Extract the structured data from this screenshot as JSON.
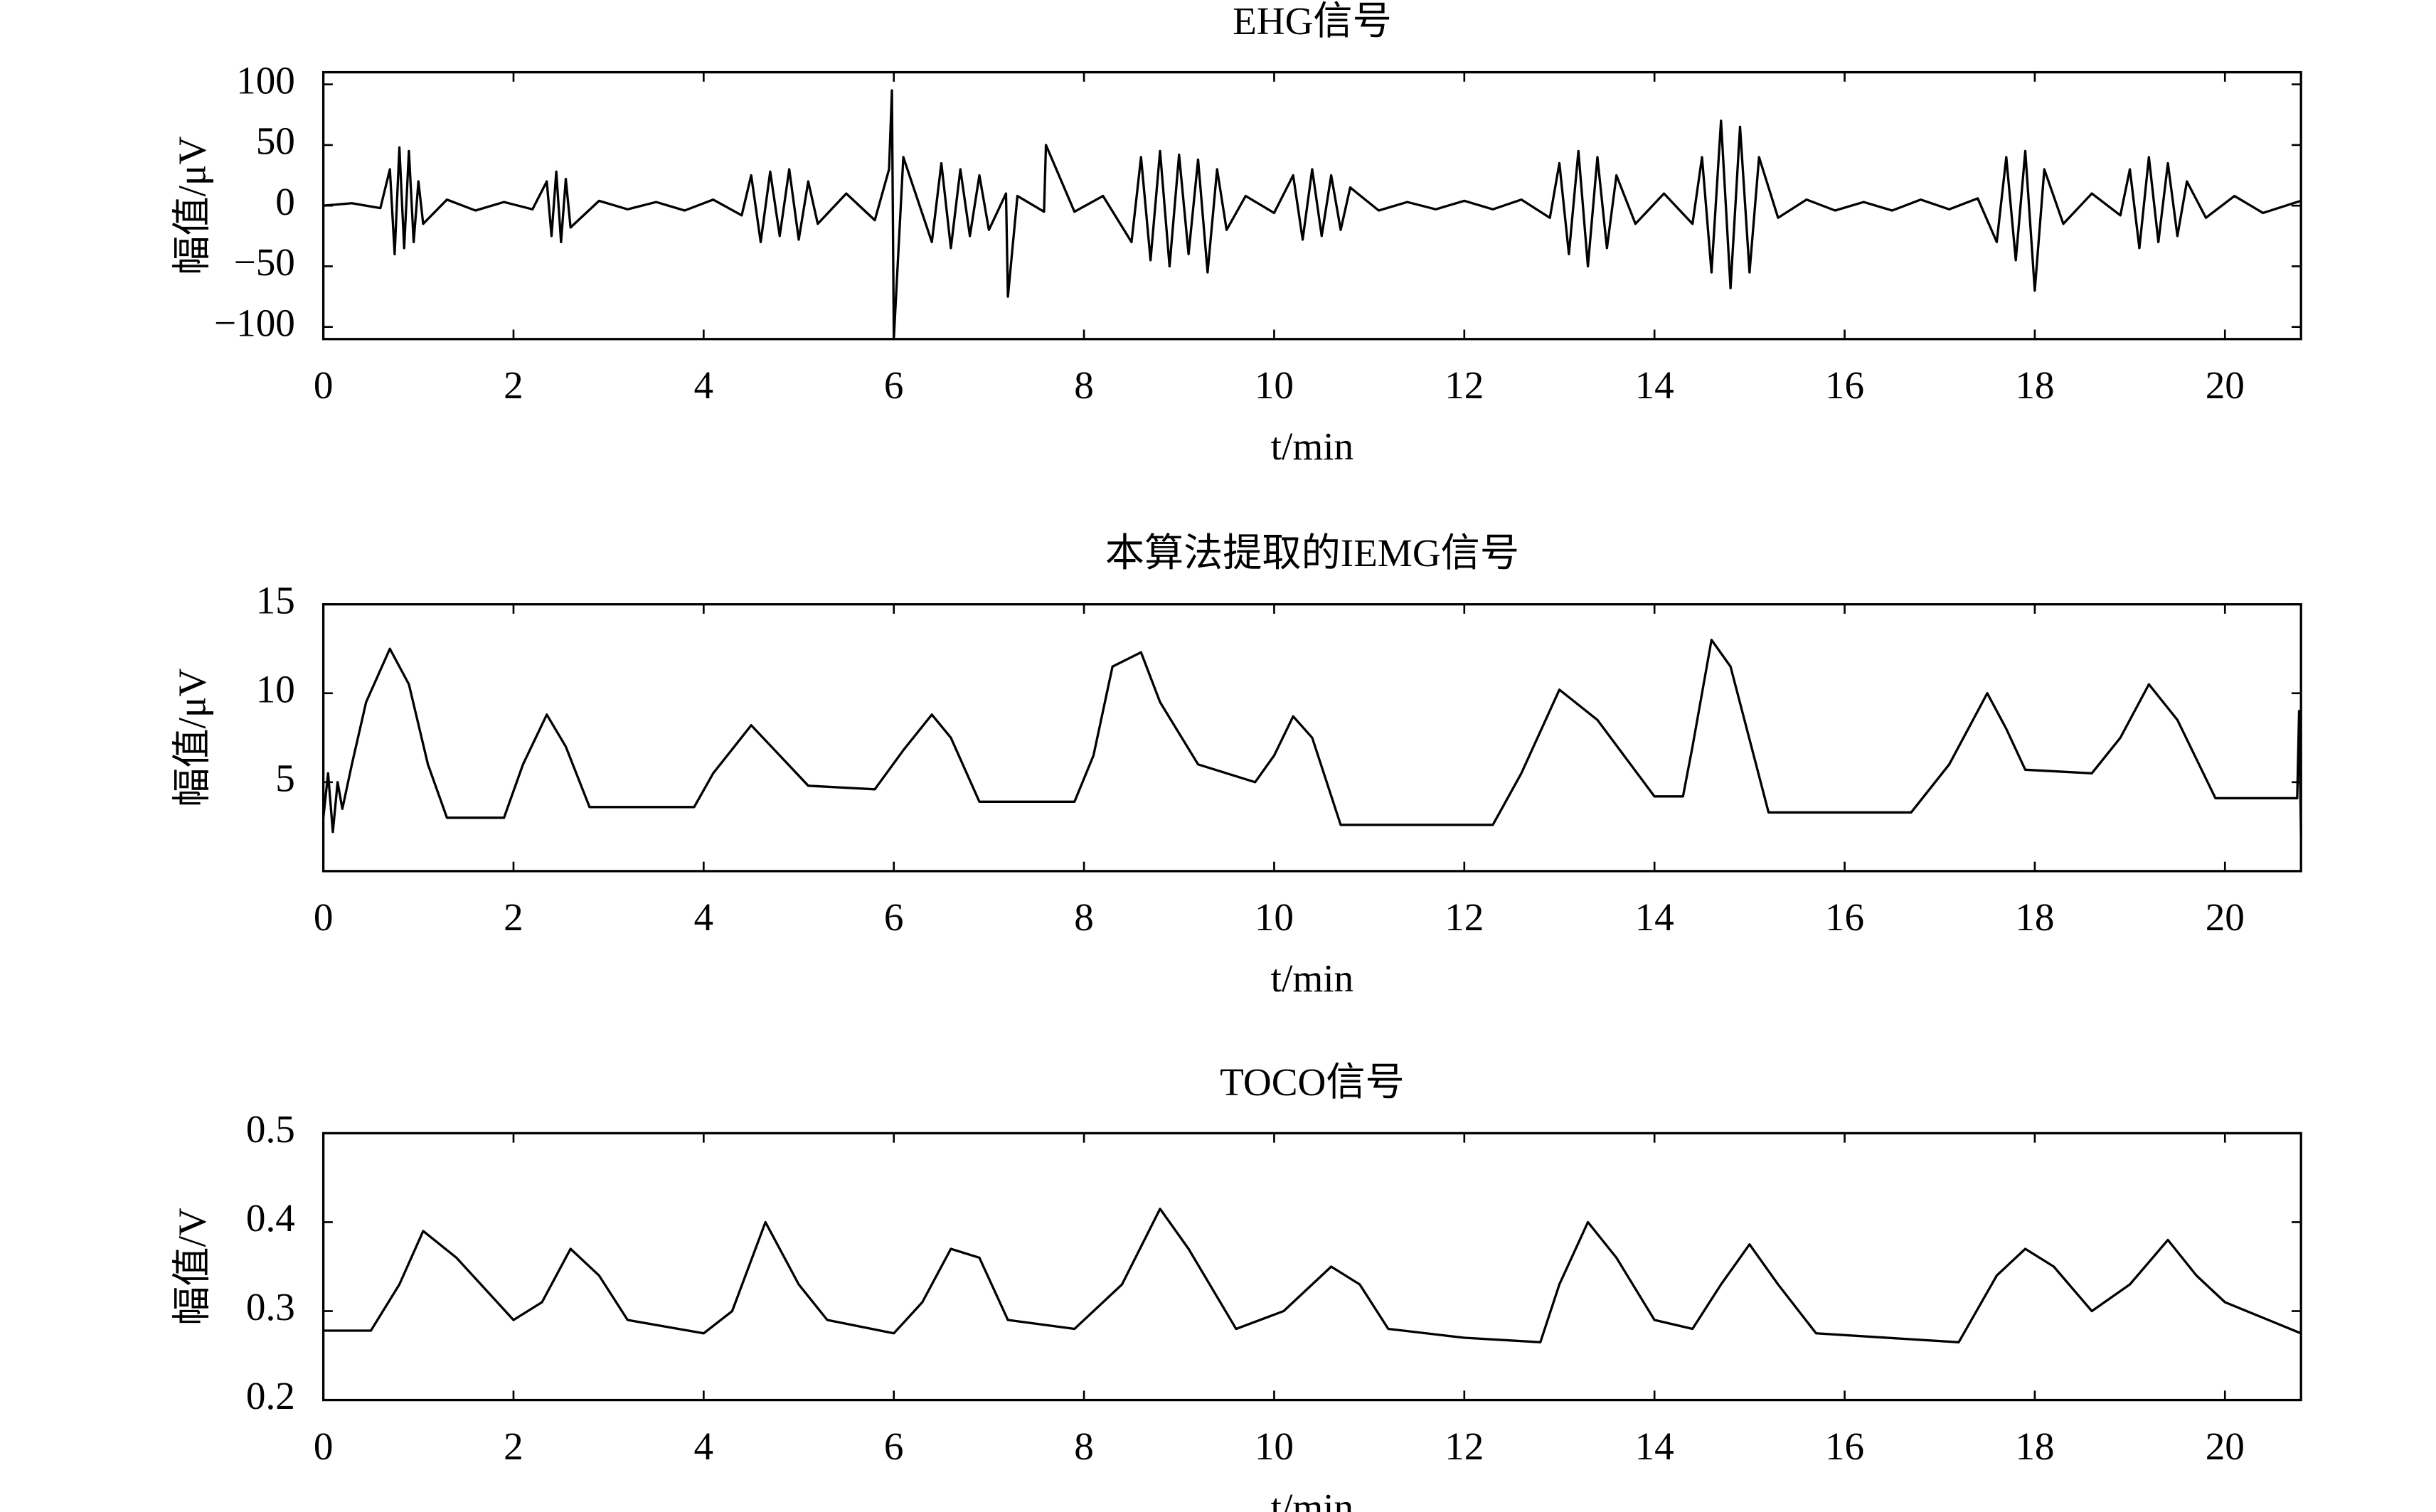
{
  "chart_data": [
    {
      "type": "line",
      "title": "EHG信号",
      "xlabel": "t/min",
      "ylabel": "幅值/μV",
      "color": "#000000",
      "xlim": [
        0,
        20.8
      ],
      "ylim": [
        -110,
        110
      ],
      "xticks": [
        0,
        2,
        4,
        6,
        8,
        10,
        12,
        14,
        16,
        18,
        20
      ],
      "yticks": [
        {
          "value": -100,
          "label": "−100"
        },
        {
          "value": -50,
          "label": "−50"
        },
        0,
        50,
        100
      ],
      "x": [
        0,
        0.3,
        0.6,
        0.7,
        0.75,
        0.8,
        0.85,
        0.9,
        0.95,
        1.0,
        1.05,
        1.3,
        1.6,
        1.9,
        2.2,
        2.35,
        2.4,
        2.45,
        2.5,
        2.55,
        2.6,
        2.9,
        3.2,
        3.5,
        3.8,
        4.1,
        4.4,
        4.5,
        4.6,
        4.7,
        4.8,
        4.9,
        5.0,
        5.1,
        5.2,
        5.5,
        5.8,
        5.95,
        5.98,
        6.0,
        6.1,
        6.4,
        6.5,
        6.6,
        6.7,
        6.8,
        6.9,
        7.0,
        7.18,
        7.2,
        7.3,
        7.58,
        7.6,
        7.9,
        8.2,
        8.5,
        8.6,
        8.7,
        8.8,
        8.9,
        9.0,
        9.1,
        9.2,
        9.3,
        9.4,
        9.5,
        9.7,
        10.0,
        10.2,
        10.3,
        10.4,
        10.5,
        10.6,
        10.7,
        10.8,
        11.1,
        11.4,
        11.7,
        12.0,
        12.3,
        12.6,
        12.9,
        13.0,
        13.1,
        13.2,
        13.3,
        13.4,
        13.5,
        13.6,
        13.8,
        14.1,
        14.4,
        14.5,
        14.6,
        14.7,
        14.8,
        14.9,
        15.0,
        15.1,
        15.3,
        15.6,
        15.9,
        16.2,
        16.5,
        16.8,
        17.1,
        17.4,
        17.6,
        17.7,
        17.8,
        17.9,
        18.0,
        18.1,
        18.3,
        18.6,
        18.9,
        19.0,
        19.1,
        19.2,
        19.3,
        19.4,
        19.5,
        19.6,
        19.8,
        20.1,
        20.4,
        20.8
      ],
      "values": [
        0,
        2,
        -2,
        30,
        -40,
        48,
        -35,
        45,
        -30,
        20,
        -15,
        5,
        -4,
        3,
        -3,
        20,
        -25,
        28,
        -30,
        22,
        -18,
        4,
        -3,
        3,
        -4,
        5,
        -8,
        25,
        -30,
        28,
        -25,
        30,
        -28,
        20,
        -15,
        10,
        -12,
        30,
        95,
        -110,
        40,
        -30,
        35,
        -35,
        30,
        -25,
        25,
        -20,
        10,
        -75,
        8,
        -5,
        50,
        -5,
        8,
        -30,
        40,
        -45,
        45,
        -50,
        42,
        -40,
        38,
        -55,
        30,
        -20,
        8,
        -6,
        25,
        -28,
        30,
        -25,
        25,
        -20,
        15,
        -4,
        3,
        -3,
        4,
        -3,
        5,
        -10,
        35,
        -40,
        45,
        -50,
        40,
        -35,
        25,
        -15,
        10,
        -15,
        40,
        -55,
        70,
        -68,
        65,
        -55,
        40,
        -10,
        5,
        -4,
        3,
        -4,
        5,
        -3,
        6,
        -30,
        40,
        -45,
        45,
        -70,
        30,
        -15,
        10,
        -8,
        30,
        -35,
        40,
        -30,
        35,
        -25,
        20,
        -10,
        8,
        -6,
        4
      ]
    },
    {
      "type": "line",
      "title": "本算法提取的IEMG信号",
      "xlabel": "t/min",
      "ylabel": "幅值/μV",
      "color": "#000000",
      "xlim": [
        0,
        20.8
      ],
      "ylim": [
        0,
        15
      ],
      "xticks": [
        0,
        2,
        4,
        6,
        8,
        10,
        12,
        14,
        16,
        18,
        20
      ],
      "yticks": [
        5,
        10,
        15
      ],
      "x": [
        0,
        0.05,
        0.1,
        0.15,
        0.2,
        0.3,
        0.45,
        0.7,
        0.9,
        1.1,
        1.3,
        1.9,
        2.1,
        2.35,
        2.55,
        2.8,
        3.9,
        4.1,
        4.5,
        4.8,
        5.1,
        5.8,
        6.1,
        6.4,
        6.6,
        6.9,
        7.9,
        8.1,
        8.3,
        8.6,
        8.8,
        9.2,
        9.8,
        10.0,
        10.2,
        10.4,
        10.7,
        12.3,
        12.6,
        13.0,
        13.4,
        14.0,
        14.3,
        14.4,
        14.6,
        14.8,
        15.2,
        16.7,
        17.1,
        17.5,
        17.7,
        17.9,
        18.6,
        18.9,
        19.2,
        19.5,
        19.9,
        20.76,
        20.78,
        20.8
      ],
      "values": [
        3,
        5.5,
        2.2,
        5,
        3.5,
        6,
        9.5,
        12.5,
        10.5,
        6,
        3,
        3,
        6,
        8.8,
        7,
        3.6,
        3.6,
        5.5,
        8.2,
        6.5,
        4.8,
        4.6,
        6.8,
        8.8,
        7.5,
        3.9,
        3.9,
        6.5,
        11.5,
        12.3,
        9.5,
        6,
        5,
        6.5,
        8.7,
        7.5,
        2.6,
        2.6,
        5.5,
        10.2,
        8.5,
        4.2,
        4.2,
        7,
        13,
        11.5,
        3.3,
        3.3,
        6,
        10,
        8,
        5.7,
        5.5,
        7.5,
        10.5,
        8.5,
        4.1,
        4.1,
        9,
        2
      ]
    },
    {
      "type": "line",
      "title": "TOCO信号",
      "xlabel": "t/min",
      "ylabel": "幅值/V",
      "color": "#000000",
      "xlim": [
        0,
        20.8
      ],
      "ylim": [
        0.2,
        0.5
      ],
      "xticks": [
        0,
        2,
        4,
        6,
        8,
        10,
        12,
        14,
        16,
        18,
        20
      ],
      "yticks": [
        0.2,
        0.3,
        0.4,
        0.5
      ],
      "x": [
        0,
        0.5,
        0.8,
        1.05,
        1.4,
        2.0,
        2.3,
        2.6,
        2.9,
        3.2,
        4.0,
        4.3,
        4.65,
        5.0,
        5.3,
        6.0,
        6.3,
        6.6,
        6.9,
        7.2,
        7.9,
        8.4,
        8.8,
        9.1,
        9.6,
        10.1,
        10.6,
        10.9,
        11.2,
        12.0,
        12.8,
        13.0,
        13.3,
        13.6,
        14.0,
        14.4,
        14.7,
        15.0,
        15.3,
        15.7,
        17.2,
        17.6,
        17.9,
        18.2,
        18.6,
        19.0,
        19.4,
        19.7,
        20.0,
        20.8
      ],
      "values": [
        0.278,
        0.278,
        0.33,
        0.39,
        0.36,
        0.29,
        0.31,
        0.37,
        0.34,
        0.29,
        0.275,
        0.3,
        0.4,
        0.33,
        0.29,
        0.275,
        0.31,
        0.37,
        0.36,
        0.29,
        0.28,
        0.33,
        0.415,
        0.37,
        0.28,
        0.3,
        0.35,
        0.33,
        0.28,
        0.27,
        0.265,
        0.33,
        0.4,
        0.36,
        0.29,
        0.28,
        0.33,
        0.375,
        0.33,
        0.275,
        0.265,
        0.34,
        0.37,
        0.35,
        0.3,
        0.33,
        0.38,
        0.34,
        0.31,
        0.275
      ]
    }
  ]
}
